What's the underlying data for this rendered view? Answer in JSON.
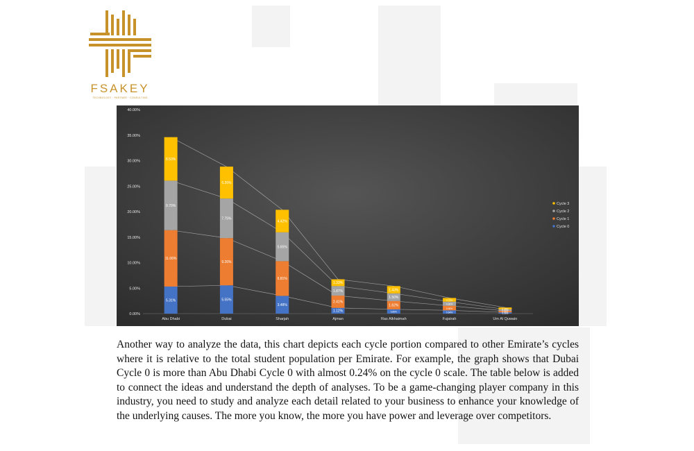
{
  "brand": {
    "name": "FSAKEY",
    "tagline": "TECHNOLOGY · PARTNER · CONSULTING"
  },
  "colors": {
    "chart_bg": "#3b3b3b",
    "cycle0": "#4472c4",
    "cycle1": "#ed7d31",
    "cycle2": "#a5a5a5",
    "cycle3": "#ffc000",
    "gold": "#c8922b"
  },
  "chart_data": {
    "type": "bar",
    "stacked": true,
    "categories": [
      "Abu Dhabi",
      "Dubai",
      "Sharjah",
      "Ajman",
      "Ras Alkhaimah",
      "Fujairah",
      "Um Al Quwain"
    ],
    "series": [
      {
        "name": "Cycle 0",
        "values": [
          5.31,
          5.55,
          3.48,
          1.12,
          0.85,
          0.64,
          0.25
        ],
        "labels": [
          "5.31%",
          "5.55%",
          "3.48%",
          "1.12%",
          "0.85%",
          "0.64%",
          "0.25%"
        ]
      },
      {
        "name": "Cycle 1",
        "values": [
          11.06,
          9.26,
          6.81,
          2.41,
          1.62,
          0.9,
          0.3
        ],
        "labels": [
          "11.06%",
          "9.26%",
          "6.81%",
          "2.41%",
          "1.62%",
          "0.90%",
          "0.30%"
        ]
      },
      {
        "name": "Cycle 2",
        "values": [
          9.7,
          7.75,
          5.65,
          1.87,
          1.5,
          0.8,
          0.3
        ],
        "labels": [
          "9.70%",
          "7.75%",
          "5.65%",
          "1.87%",
          "1.50%",
          "0.80%",
          "0.30%"
        ]
      },
      {
        "name": "Cycle 3",
        "values": [
          8.53,
          6.26,
          4.42,
          1.33,
          1.43,
          0.73,
          0.35
        ],
        "labels": [
          "8.53%",
          "6.26%",
          "4.42%",
          "1.33%",
          "1.43%",
          "0.73%",
          "0.35%"
        ]
      }
    ],
    "yticks": [
      "0.00%",
      "5.00%",
      "10.00%",
      "15.00%",
      "20.00%",
      "25.00%",
      "30.00%",
      "35.00%",
      "40.00%"
    ],
    "ylim": [
      0,
      40
    ],
    "legend_order": [
      "Cycle 3",
      "Cycle 2",
      "Cycle 1",
      "Cycle 0"
    ],
    "legend_position": "right",
    "series_lines": true,
    "grid": false
  },
  "paragraph": "Another way to analyze the data, this chart depicts each cycle portion compared to other Emirate’s cycles where it is relative to the total student population per Emirate. For example, the graph shows that Dubai Cycle 0 is more than Abu Dhabi Cycle 0 with almost 0.24% on the cycle 0 scale. The table below is added to connect the ideas and understand the depth of analyses. To be a game-changing player company in this industry, you need to study and analyze each detail related to your business to enhance your knowledge of the underlying causes. The more you know, the more you have power and leverage over competitors."
}
